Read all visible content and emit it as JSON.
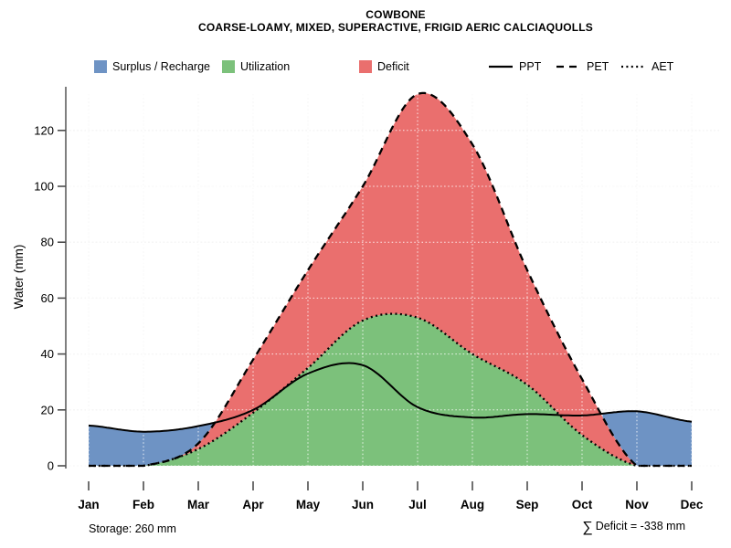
{
  "title": {
    "line1": "COWBONE",
    "line2": "COARSE-LOAMY, MIXED, SUPERACTIVE, FRIGID AERIC CALCIAQUOLLS"
  },
  "legend": {
    "area_labels": [
      "Surplus / Recharge",
      "Utilization",
      "Deficit"
    ],
    "line_labels": [
      "PPT",
      "PET",
      "AET"
    ]
  },
  "footer": {
    "storage": "Storage: 260 mm",
    "sum_symbol": "∑",
    "sum_text": "Deficit = -338 mm"
  },
  "chart_data": {
    "type": "area",
    "title": "COWBONE",
    "subtitle": "COARSE-LOAMY, MIXED, SUPERACTIVE, FRIGID AERIC CALCIAQUOLLS",
    "ylabel": "Water (mm)",
    "xlabel": "",
    "months": [
      "Jan",
      "Feb",
      "Mar",
      "Apr",
      "May",
      "Jun",
      "Jul",
      "Aug",
      "Sep",
      "Oct",
      "Nov",
      "Dec"
    ],
    "yticks": [
      0,
      20,
      40,
      60,
      80,
      100,
      120
    ],
    "ylim": [
      0,
      136
    ],
    "grid": true,
    "legend_position": "top",
    "series": [
      {
        "name": "PPT",
        "line": "solid",
        "color": "#000000",
        "values": [
          14.4,
          12.2,
          14.2,
          20,
          33,
          36,
          21,
          17.3,
          18.5,
          18,
          19.5,
          15.8
        ]
      },
      {
        "name": "PET",
        "line": "dashed",
        "color": "#000000",
        "values": [
          0,
          0,
          8,
          38,
          70,
          100,
          133,
          115,
          70,
          31,
          0,
          0
        ]
      },
      {
        "name": "AET",
        "line": "dotted",
        "color": "#000000",
        "values": [
          0,
          0,
          6,
          19,
          35,
          52,
          53,
          40,
          29,
          11,
          0,
          0
        ]
      }
    ],
    "areas": [
      {
        "name": "Surplus / Recharge",
        "color": "#6e93c4",
        "between": [
          "PPT",
          "PET"
        ]
      },
      {
        "name": "Utilization",
        "color": "#7cc17b",
        "between": [
          "AET",
          "zero"
        ]
      },
      {
        "name": "Deficit",
        "color": "#ea6f6e",
        "between": [
          "PET",
          "AET"
        ]
      }
    ],
    "annotations": {
      "storage_mm": 260,
      "deficit_sum_mm": -338
    }
  }
}
